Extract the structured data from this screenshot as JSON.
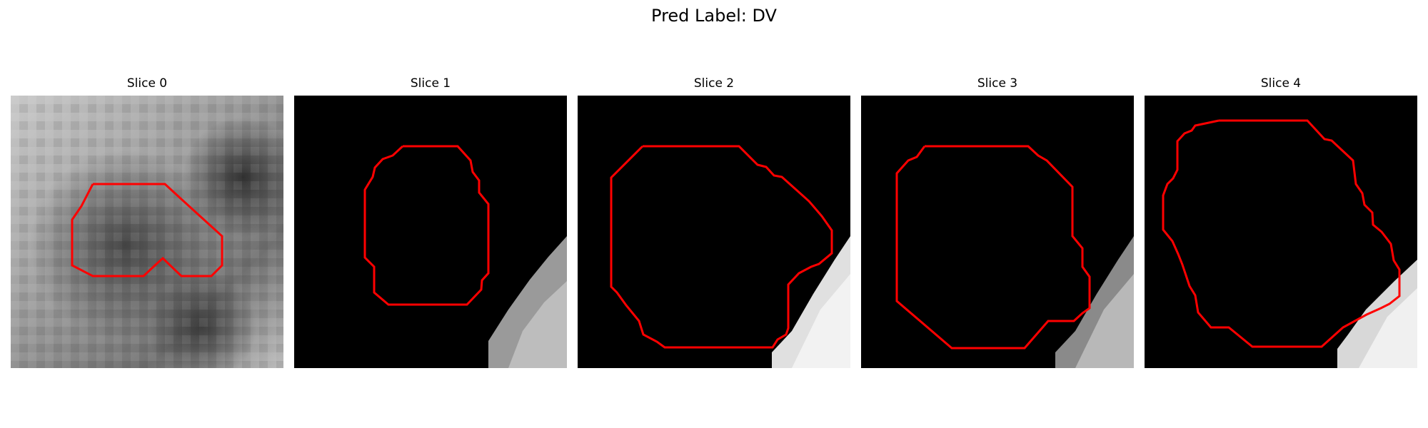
{
  "figure": {
    "title": "Pred Label: DV"
  },
  "slices": [
    {
      "title": "Slice 0"
    },
    {
      "title": "Slice 1"
    },
    {
      "title": "Slice 2"
    },
    {
      "title": "Slice 3"
    },
    {
      "title": "Slice 4"
    }
  ],
  "colors": {
    "contour": "#ff0000",
    "background": "#000000"
  }
}
